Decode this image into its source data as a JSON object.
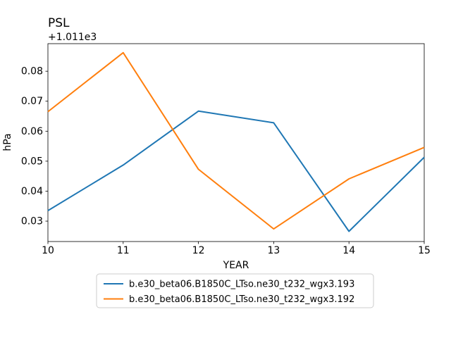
{
  "chart_data": {
    "type": "line",
    "title": "PSL",
    "offset_label": "+1.011e3",
    "xlabel": "YEAR",
    "ylabel": "hPa",
    "x": [
      10,
      11,
      12,
      13,
      14,
      15
    ],
    "x_ticks": [
      "10",
      "11",
      "12",
      "13",
      "14",
      "15"
    ],
    "y_ticks": [
      0.03,
      0.04,
      0.05,
      0.06,
      0.07,
      0.08
    ],
    "xlim": [
      10,
      15
    ],
    "ylim": [
      0.0232,
      0.0892
    ],
    "grid": false,
    "legend_position": "lower center outside",
    "series": [
      {
        "name": "b.e30_beta06.B1850C_LTso.ne30_t232_wgx3.193",
        "color": "#1f77b4",
        "values": [
          0.0335,
          0.0487,
          0.0667,
          0.0628,
          0.0266,
          0.0513
        ]
      },
      {
        "name": "b.e30_beta06.B1850C_LTso.ne30_t232_wgx3.192",
        "color": "#ff7f0e",
        "values": [
          0.0665,
          0.0862,
          0.0473,
          0.0274,
          0.0441,
          0.0546
        ]
      }
    ]
  }
}
